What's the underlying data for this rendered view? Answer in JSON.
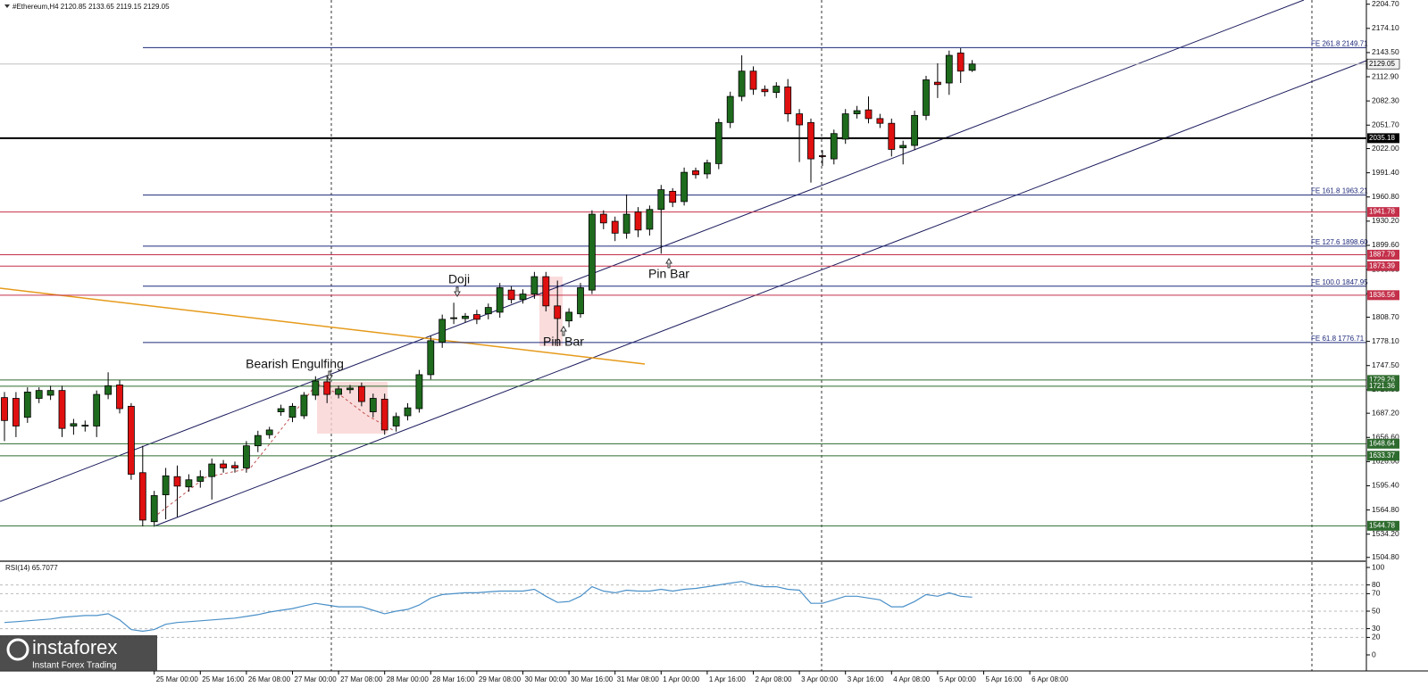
{
  "chart_data": {
    "type": "candlestick",
    "title": "#Ethereum,H4  2120.85 2133.65 2119.15 2129.05",
    "ylim": [
      1500,
      2210
    ],
    "yticks": [
      {
        "value": 2204.7,
        "label": "2204.70"
      },
      {
        "value": 2174.1,
        "label": "2174.10"
      },
      {
        "value": 2143.5,
        "label": "2143.50"
      },
      {
        "value": 2112.9,
        "label": "2112.90"
      },
      {
        "value": 2082.3,
        "label": "2082.30"
      },
      {
        "value": 2051.7,
        "label": "2051.70"
      },
      {
        "value": 2022,
        "label": "2022.00"
      },
      {
        "value": 1991.4,
        "label": "1991.40"
      },
      {
        "value": 1960.8,
        "label": "1960.80"
      },
      {
        "value": 1930.2,
        "label": "1930.20"
      },
      {
        "value": 1899.6,
        "label": "1899.60"
      },
      {
        "value": 1869,
        "label": "1869.00"
      },
      {
        "value": 1838.4,
        "label": "1838.40"
      },
      {
        "value": 1808.7,
        "label": "1808.70"
      },
      {
        "value": 1778.1,
        "label": "1778.10"
      },
      {
        "value": 1747.5,
        "label": "1747.50"
      },
      {
        "value": 1716.9,
        "label": "1716.90"
      },
      {
        "value": 1687.2,
        "label": "1687.20"
      },
      {
        "value": 1656.6,
        "label": "1656.60"
      },
      {
        "value": 1626,
        "label": "1626.00"
      },
      {
        "value": 1595.4,
        "label": "1595.40"
      },
      {
        "value": 1564.8,
        "label": "1564.80"
      },
      {
        "value": 1534.2,
        "label": "1534.20"
      },
      {
        "value": 1504.8,
        "label": "1504.80"
      }
    ],
    "up_color": "#1e6b1e",
    "down_color": "#e01010",
    "ohlc": [
      [
        1707,
        1714,
        1652,
        1678
      ],
      [
        1706,
        1714,
        1657,
        1671
      ],
      [
        1682,
        1720,
        1675,
        1714
      ],
      [
        1706,
        1720,
        1700,
        1716
      ],
      [
        1710,
        1722,
        1704,
        1716
      ],
      [
        1716,
        1722,
        1657,
        1668
      ],
      [
        1671,
        1680,
        1660,
        1674
      ],
      [
        1671,
        1678,
        1664,
        1672
      ],
      [
        1671,
        1716,
        1657,
        1711
      ],
      [
        1711,
        1739,
        1705,
        1722
      ],
      [
        1723,
        1729,
        1687,
        1693
      ],
      [
        1696,
        1700,
        1603,
        1610
      ],
      [
        1612,
        1646,
        1544,
        1552
      ],
      [
        1550,
        1589,
        1545,
        1583
      ],
      [
        1584,
        1618,
        1553,
        1608
      ],
      [
        1607,
        1621,
        1556,
        1595
      ],
      [
        1594,
        1610,
        1588,
        1603
      ],
      [
        1601,
        1615,
        1593,
        1607
      ],
      [
        1607,
        1630,
        1578,
        1623
      ],
      [
        1623,
        1628,
        1612,
        1618
      ],
      [
        1621,
        1626,
        1612,
        1618
      ],
      [
        1618,
        1652,
        1612,
        1646
      ],
      [
        1646,
        1665,
        1638,
        1659
      ],
      [
        1660,
        1670,
        1655,
        1666
      ],
      [
        1689,
        1698,
        1684,
        1693
      ],
      [
        1682,
        1700,
        1676,
        1696
      ],
      [
        1684,
        1714,
        1680,
        1710
      ],
      [
        1710,
        1734,
        1704,
        1728
      ],
      [
        1727,
        1734,
        1700,
        1711
      ],
      [
        1711,
        1722,
        1706,
        1718
      ],
      [
        1717,
        1723,
        1712,
        1719
      ],
      [
        1721,
        1726,
        1696,
        1702
      ],
      [
        1689,
        1712,
        1682,
        1706
      ],
      [
        1705,
        1712,
        1660,
        1666
      ],
      [
        1671,
        1688,
        1664,
        1683
      ],
      [
        1684,
        1700,
        1678,
        1694
      ],
      [
        1693,
        1742,
        1688,
        1736
      ],
      [
        1736,
        1785,
        1730,
        1779
      ],
      [
        1777,
        1812,
        1770,
        1806
      ],
      [
        1807,
        1827,
        1800,
        1808
      ],
      [
        1807,
        1814,
        1802,
        1810
      ],
      [
        1812,
        1818,
        1800,
        1806
      ],
      [
        1813,
        1826,
        1806,
        1821
      ],
      [
        1815,
        1852,
        1808,
        1846
      ],
      [
        1843,
        1848,
        1826,
        1831
      ],
      [
        1831,
        1844,
        1826,
        1838
      ],
      [
        1838,
        1866,
        1832,
        1860
      ],
      [
        1860,
        1866,
        1816,
        1823
      ],
      [
        1823,
        1855,
        1772,
        1807
      ],
      [
        1804,
        1820,
        1796,
        1815
      ],
      [
        1813,
        1852,
        1808,
        1846
      ],
      [
        1843,
        1944,
        1838,
        1939
      ],
      [
        1939,
        1944,
        1920,
        1928
      ],
      [
        1930,
        1936,
        1905,
        1915
      ],
      [
        1915,
        1964,
        1908,
        1939
      ],
      [
        1942,
        1948,
        1910,
        1919
      ],
      [
        1920,
        1950,
        1912,
        1945
      ],
      [
        1945,
        1976,
        1889,
        1970
      ],
      [
        1968,
        1972,
        1948,
        1954
      ],
      [
        1955,
        1998,
        1950,
        1992
      ],
      [
        1994,
        1998,
        1984,
        1989
      ],
      [
        1990,
        2008,
        1984,
        2004
      ],
      [
        2003,
        2060,
        1996,
        2055
      ],
      [
        2055,
        2094,
        2048,
        2088
      ],
      [
        2088,
        2140,
        2082,
        2120
      ],
      [
        2120,
        2126,
        2090,
        2097
      ],
      [
        2097,
        2102,
        2088,
        2094
      ],
      [
        2093,
        2106,
        2086,
        2101
      ],
      [
        2100,
        2110,
        2056,
        2066
      ],
      [
        2066,
        2072,
        2005,
        2052
      ],
      [
        2055,
        2060,
        1979,
        2009
      ],
      [
        2013,
        2020,
        2000,
        2012
      ],
      [
        2009,
        2046,
        2002,
        2041
      ],
      [
        2034,
        2072,
        2028,
        2066
      ],
      [
        2066,
        2076,
        2060,
        2070
      ],
      [
        2071,
        2088,
        2054,
        2060
      ],
      [
        2060,
        2066,
        2048,
        2054
      ],
      [
        2054,
        2060,
        2012,
        2021
      ],
      [
        2023,
        2032,
        2002,
        2026
      ],
      [
        2026,
        2070,
        2020,
        2064
      ],
      [
        2064,
        2114,
        2058,
        2109
      ],
      [
        2106,
        2130,
        2086,
        2103
      ],
      [
        2105,
        2146,
        2090,
        2140
      ],
      [
        2143,
        2149,
        2105,
        2120
      ],
      [
        2121,
        2134,
        2119,
        2129
      ]
    ],
    "levels": [
      {
        "value": 2149.71,
        "label": "FE 261.8 2149.71",
        "color": "#1f2a7a"
      },
      {
        "value": 2129.05,
        "color": "#c0c0c0"
      },
      {
        "value": 2035.18,
        "color": "#000000"
      },
      {
        "value": 1963.21,
        "label": "FE 161.8 1963.21",
        "color": "#1f2a7a"
      },
      {
        "value": 1941.78,
        "color": "#c4304a"
      },
      {
        "value": 1898.6,
        "label": "FE 127.6 1898.60",
        "color": "#1f2a7a"
      },
      {
        "value": 1887.79,
        "color": "#c4304a"
      },
      {
        "value": 1873.39,
        "color": "#c4304a"
      },
      {
        "value": 1847.95,
        "label": "FE 100.0 1847.95",
        "color": "#1f2a7a"
      },
      {
        "value": 1836.56,
        "color": "#c4304a"
      },
      {
        "value": 1776.71,
        "label": "FE 61.8 1776.71",
        "color": "#1f2a7a"
      },
      {
        "value": 1729.26,
        "color": "#2e6b2e"
      },
      {
        "value": 1721.36,
        "color": "#2e6b2e"
      },
      {
        "value": 1648.64,
        "color": "#2e6b2e"
      },
      {
        "value": 1633.37,
        "color": "#2e6b2e"
      },
      {
        "value": 1544.78,
        "color": "#2e6b2e"
      }
    ],
    "annotations": [
      "Doji",
      "Pin Bar",
      "Pin Bar",
      "Bearish Engulfing"
    ],
    "x_labels": [
      "25 Mar 00:00",
      "25 Mar 16:00",
      "26 Mar 08:00",
      "27 Mar 00:00",
      "27 Mar 08:00",
      "28 Mar 00:00",
      "28 Mar 16:00",
      "29 Mar 08:00",
      "30 Mar 00:00",
      "30 Mar 16:00",
      "31 Mar 08:00",
      "1 Apr 00:00",
      "1 Apr 16:00",
      "2 Apr 08:00",
      "3 Apr 00:00",
      "3 Apr 16:00",
      "4 Apr 08:00",
      "5 Apr 00:00",
      "5 Apr 16:00",
      "6 Apr 08:00"
    ],
    "rsi": {
      "label": "RSI(14) 65.7077",
      "color": "#4a90c8",
      "ylim": [
        0,
        100
      ],
      "yticks": [
        100,
        80,
        70,
        50,
        30,
        20,
        0
      ],
      "values": [
        37,
        38,
        39,
        40,
        41,
        43,
        44,
        45,
        45,
        47,
        40,
        29,
        27,
        29,
        35,
        37,
        38,
        39,
        40,
        41,
        42,
        44,
        46,
        49,
        51,
        53,
        56,
        59,
        57,
        55,
        55,
        55,
        51,
        47,
        50,
        52,
        57,
        65,
        69,
        70,
        71,
        71,
        72,
        73,
        73,
        73,
        75,
        67,
        60,
        61,
        67,
        78,
        73,
        71,
        74,
        73,
        73,
        75,
        73,
        75,
        76,
        78,
        80,
        82,
        84,
        80,
        78,
        78,
        75,
        74,
        59,
        59,
        63,
        67,
        67,
        65,
        63,
        55,
        55,
        61,
        69,
        67,
        71,
        67,
        66
      ]
    }
  },
  "branding": {
    "logo": "instaforex",
    "tagline": "Instant Forex Trading"
  }
}
